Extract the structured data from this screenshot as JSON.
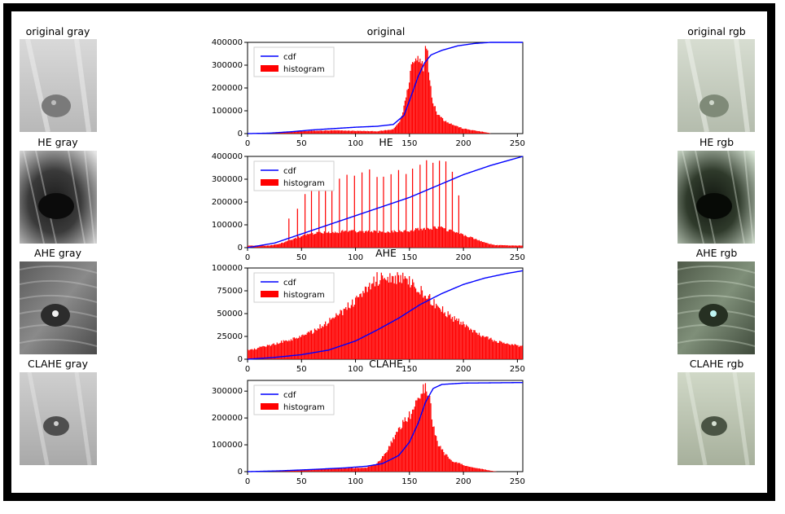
{
  "rows": [
    {
      "left_title": "original gray",
      "center_title": "original",
      "right_title": "original rgb"
    },
    {
      "left_title": "HE gray",
      "center_title": "HE",
      "right_title": "HE rgb"
    },
    {
      "left_title": "AHE gray",
      "center_title": "AHE",
      "right_title": "AHE rgb"
    },
    {
      "left_title": "CLAHE gray",
      "center_title": "CLAHE",
      "right_title": "CLAHE rgb"
    }
  ],
  "colors": {
    "cdf": "#0000ff",
    "histogram": "#ff0000",
    "frame": "#000000"
  },
  "thumbnails": {
    "gray_icon": "grayscale-floor-photo",
    "rgb_icon": "tinted-floor-photo"
  },
  "chart_data": [
    {
      "type": "bar",
      "title": "original",
      "x_range": [
        0,
        255
      ],
      "xlim": [
        0,
        255
      ],
      "ylim": [
        0,
        400000
      ],
      "x_ticks": [
        0,
        50,
        100,
        150,
        200,
        250
      ],
      "y_ticks": [
        0,
        100000,
        200000,
        300000,
        400000
      ],
      "legend": {
        "position": "top-left",
        "entries": [
          "cdf",
          "histogram"
        ]
      },
      "histogram_peaks": [
        [
          0,
          500
        ],
        [
          20,
          2000
        ],
        [
          40,
          8000
        ],
        [
          60,
          12000
        ],
        [
          80,
          14000
        ],
        [
          100,
          12000
        ],
        [
          120,
          10000
        ],
        [
          135,
          18000
        ],
        [
          142,
          60000
        ],
        [
          148,
          180000
        ],
        [
          152,
          300000
        ],
        [
          156,
          325000
        ],
        [
          160,
          340000
        ],
        [
          163,
          300000
        ],
        [
          166,
          390000
        ],
        [
          169,
          240000
        ],
        [
          172,
          140000
        ],
        [
          176,
          90000
        ],
        [
          182,
          60000
        ],
        [
          190,
          40000
        ],
        [
          200,
          22000
        ],
        [
          210,
          14000
        ],
        [
          218,
          8000
        ],
        [
          224,
          3000
        ],
        [
          226,
          0
        ],
        [
          255,
          0
        ]
      ],
      "cdf_points": [
        [
          0,
          0
        ],
        [
          20,
          2000
        ],
        [
          40,
          8000
        ],
        [
          60,
          16000
        ],
        [
          80,
          22000
        ],
        [
          100,
          28000
        ],
        [
          120,
          32000
        ],
        [
          135,
          40000
        ],
        [
          145,
          80000
        ],
        [
          152,
          170000
        ],
        [
          158,
          250000
        ],
        [
          164,
          310000
        ],
        [
          170,
          345000
        ],
        [
          180,
          365000
        ],
        [
          195,
          385000
        ],
        [
          210,
          395000
        ],
        [
          225,
          400000
        ],
        [
          255,
          400000
        ]
      ]
    },
    {
      "type": "bar",
      "title": "HE",
      "x_range": [
        0,
        255
      ],
      "xlim": [
        0,
        255
      ],
      "ylim": [
        0,
        400000
      ],
      "x_ticks": [
        0,
        50,
        100,
        150,
        200,
        250
      ],
      "y_ticks": [
        0,
        100000,
        200000,
        300000,
        400000
      ],
      "legend": {
        "position": "top-left",
        "entries": [
          "cdf",
          "histogram"
        ]
      },
      "histogram_peaks": [
        [
          0,
          40000
        ],
        [
          20,
          40000
        ],
        [
          30,
          80000
        ],
        [
          40,
          150000
        ],
        [
          50,
          230000
        ],
        [
          60,
          280000
        ],
        [
          70,
          300000
        ],
        [
          80,
          310000
        ],
        [
          90,
          330000
        ],
        [
          100,
          330000
        ],
        [
          110,
          320000
        ],
        [
          120,
          320000
        ],
        [
          130,
          320000
        ],
        [
          140,
          330000
        ],
        [
          150,
          340000
        ],
        [
          160,
          370000
        ],
        [
          170,
          390000
        ],
        [
          180,
          390000
        ],
        [
          190,
          320000
        ],
        [
          200,
          260000
        ],
        [
          210,
          180000
        ],
        [
          220,
          100000
        ],
        [
          230,
          50000
        ],
        [
          255,
          40000
        ]
      ],
      "he_spike_bins": [
        38,
        46,
        53,
        59,
        66,
        72,
        78,
        85,
        92,
        99,
        106,
        113,
        120,
        126,
        133,
        140,
        147,
        153,
        160,
        166,
        172,
        178,
        184,
        190,
        196
      ],
      "he_spike_values": [
        120000,
        170000,
        230000,
        290000,
        320000,
        320000,
        330000,
        320000,
        340000,
        330000,
        325000,
        320000,
        330000,
        320000,
        340000,
        340000,
        350000,
        360000,
        380000,
        400000,
        395000,
        380000,
        390000,
        310000,
        250000
      ],
      "cdf_points": [
        [
          0,
          0
        ],
        [
          25,
          20000
        ],
        [
          50,
          60000
        ],
        [
          75,
          100000
        ],
        [
          100,
          140000
        ],
        [
          125,
          180000
        ],
        [
          150,
          220000
        ],
        [
          175,
          270000
        ],
        [
          200,
          320000
        ],
        [
          225,
          360000
        ],
        [
          255,
          400000
        ]
      ]
    },
    {
      "type": "bar",
      "title": "AHE",
      "x_range": [
        0,
        255
      ],
      "xlim": [
        0,
        255
      ],
      "ylim": [
        0,
        100000
      ],
      "x_ticks": [
        0,
        50,
        100,
        150,
        200,
        250
      ],
      "y_ticks": [
        0,
        25000,
        50000,
        75000,
        100000
      ],
      "legend": {
        "position": "top-left",
        "entries": [
          "cdf",
          "histogram"
        ]
      },
      "histogram_peaks": [
        [
          0,
          10000
        ],
        [
          20,
          15000
        ],
        [
          40,
          22000
        ],
        [
          60,
          30000
        ],
        [
          80,
          45000
        ],
        [
          100,
          65000
        ],
        [
          110,
          80000
        ],
        [
          120,
          88000
        ],
        [
          130,
          92000
        ],
        [
          140,
          90000
        ],
        [
          150,
          84000
        ],
        [
          160,
          75000
        ],
        [
          170,
          65000
        ],
        [
          180,
          55000
        ],
        [
          190,
          46000
        ],
        [
          200,
          38000
        ],
        [
          210,
          30000
        ],
        [
          220,
          24000
        ],
        [
          230,
          20000
        ],
        [
          240,
          17000
        ],
        [
          255,
          14000
        ]
      ],
      "cdf_points": [
        [
          0,
          0
        ],
        [
          25,
          2000
        ],
        [
          50,
          5000
        ],
        [
          75,
          10000
        ],
        [
          100,
          20000
        ],
        [
          120,
          32000
        ],
        [
          140,
          45000
        ],
        [
          160,
          60000
        ],
        [
          180,
          72000
        ],
        [
          200,
          82000
        ],
        [
          220,
          89000
        ],
        [
          240,
          94000
        ],
        [
          255,
          97000
        ]
      ]
    },
    {
      "type": "bar",
      "title": "CLAHE",
      "x_range": [
        0,
        255
      ],
      "xlim": [
        0,
        255
      ],
      "ylim": [
        0,
        340000
      ],
      "x_ticks": [
        0,
        50,
        100,
        150,
        200,
        250
      ],
      "y_ticks": [
        0,
        100000,
        200000,
        300000
      ],
      "legend": {
        "position": "top-left",
        "entries": [
          "cdf",
          "histogram"
        ]
      },
      "histogram_peaks": [
        [
          0,
          500
        ],
        [
          30,
          3000
        ],
        [
          60,
          8000
        ],
        [
          90,
          12000
        ],
        [
          110,
          15000
        ],
        [
          120,
          30000
        ],
        [
          128,
          70000
        ],
        [
          135,
          120000
        ],
        [
          142,
          170000
        ],
        [
          148,
          200000
        ],
        [
          152,
          220000
        ],
        [
          156,
          250000
        ],
        [
          160,
          290000
        ],
        [
          164,
          320000
        ],
        [
          168,
          300000
        ],
        [
          172,
          180000
        ],
        [
          176,
          110000
        ],
        [
          182,
          70000
        ],
        [
          190,
          40000
        ],
        [
          200,
          25000
        ],
        [
          210,
          15000
        ],
        [
          220,
          8000
        ],
        [
          228,
          2000
        ],
        [
          232,
          0
        ],
        [
          255,
          0
        ]
      ],
      "cdf_points": [
        [
          0,
          0
        ],
        [
          30,
          3000
        ],
        [
          60,
          8000
        ],
        [
          90,
          14000
        ],
        [
          110,
          20000
        ],
        [
          125,
          30000
        ],
        [
          140,
          60000
        ],
        [
          150,
          110000
        ],
        [
          158,
          180000
        ],
        [
          165,
          260000
        ],
        [
          172,
          310000
        ],
        [
          180,
          325000
        ],
        [
          200,
          330000
        ],
        [
          255,
          332000
        ]
      ]
    }
  ]
}
